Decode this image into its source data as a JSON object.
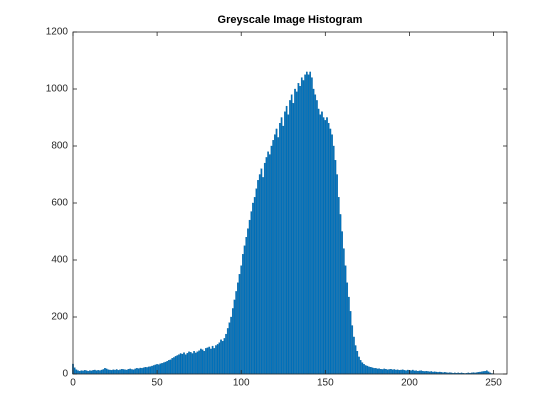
{
  "chart_data": {
    "type": "bar",
    "title": "Greyscale Image Histogram",
    "color": "#0072bd",
    "x": [
      0,
      1,
      2,
      3,
      4,
      5,
      6,
      7,
      8,
      9,
      10,
      11,
      12,
      13,
      14,
      15,
      16,
      17,
      18,
      19,
      20,
      21,
      22,
      23,
      24,
      25,
      26,
      27,
      28,
      29,
      30,
      31,
      32,
      33,
      34,
      35,
      36,
      37,
      38,
      39,
      40,
      41,
      42,
      43,
      44,
      45,
      46,
      47,
      48,
      49,
      50,
      51,
      52,
      53,
      54,
      55,
      56,
      57,
      58,
      59,
      60,
      61,
      62,
      63,
      64,
      65,
      66,
      67,
      68,
      69,
      70,
      71,
      72,
      73,
      74,
      75,
      76,
      77,
      78,
      79,
      80,
      81,
      82,
      83,
      84,
      85,
      86,
      87,
      88,
      89,
      90,
      91,
      92,
      93,
      94,
      95,
      96,
      97,
      98,
      99,
      100,
      101,
      102,
      103,
      104,
      105,
      106,
      107,
      108,
      109,
      110,
      111,
      112,
      113,
      114,
      115,
      116,
      117,
      118,
      119,
      120,
      121,
      122,
      123,
      124,
      125,
      126,
      127,
      128,
      129,
      130,
      131,
      132,
      133,
      134,
      135,
      136,
      137,
      138,
      139,
      140,
      141,
      142,
      143,
      144,
      145,
      146,
      147,
      148,
      149,
      150,
      151,
      152,
      153,
      154,
      155,
      156,
      157,
      158,
      159,
      160,
      161,
      162,
      163,
      164,
      165,
      166,
      167,
      168,
      169,
      170,
      171,
      172,
      173,
      174,
      175,
      176,
      177,
      178,
      179,
      180,
      181,
      182,
      183,
      184,
      185,
      186,
      187,
      188,
      189,
      190,
      191,
      192,
      193,
      194,
      195,
      196,
      197,
      198,
      199,
      200,
      201,
      202,
      203,
      204,
      205,
      206,
      207,
      208,
      209,
      210,
      211,
      212,
      213,
      214,
      215,
      216,
      217,
      218,
      219,
      220,
      221,
      222,
      223,
      224,
      225,
      226,
      227,
      228,
      229,
      230,
      231,
      232,
      233,
      234,
      235,
      236,
      237,
      238,
      239,
      240,
      241,
      242,
      243,
      244,
      245,
      246,
      247,
      248,
      249,
      250,
      251,
      252,
      253,
      254,
      255
    ],
    "values": [
      35,
      22,
      15,
      12,
      10,
      12,
      11,
      13,
      12,
      10,
      12,
      11,
      13,
      14,
      12,
      13,
      12,
      14,
      16,
      20,
      18,
      15,
      14,
      13,
      15,
      14,
      16,
      13,
      15,
      17,
      16,
      15,
      14,
      17,
      18,
      16,
      15,
      18,
      20,
      19,
      21,
      20,
      22,
      24,
      23,
      25,
      26,
      28,
      30,
      32,
      34,
      33,
      36,
      38,
      40,
      42,
      45,
      48,
      50,
      55,
      58,
      62,
      65,
      68,
      72,
      70,
      75,
      68,
      73,
      78,
      76,
      72,
      80,
      74,
      78,
      82,
      88,
      85,
      80,
      90,
      92,
      95,
      88,
      98,
      90,
      100,
      104,
      110,
      120,
      115,
      125,
      140,
      160,
      180,
      200,
      230,
      260,
      290,
      320,
      350,
      380,
      420,
      450,
      480,
      510,
      540,
      570,
      600,
      620,
      650,
      680,
      700,
      720,
      690,
      740,
      760,
      780,
      770,
      800,
      820,
      840,
      860,
      830,
      880,
      900,
      870,
      920,
      940,
      910,
      960,
      980,
      950,
      1000,
      990,
      1020,
      1010,
      1040,
      1030,
      1050,
      1060,
      1050,
      1060,
      1040,
      1000,
      980,
      960,
      930,
      910,
      920,
      900,
      890,
      900,
      880,
      860,
      840,
      800,
      750,
      700,
      620,
      560,
      500,
      440,
      380,
      320,
      270,
      220,
      170,
      130,
      100,
      80,
      60,
      48,
      40,
      34,
      30,
      28,
      25,
      24,
      22,
      20,
      20,
      18,
      19,
      17,
      16,
      18,
      17,
      15,
      16,
      17,
      15,
      16,
      14,
      15,
      13,
      14,
      15,
      13,
      12,
      14,
      13,
      12,
      14,
      11,
      12,
      10,
      11,
      12,
      10,
      9,
      10,
      9,
      8,
      9,
      7,
      8,
      7,
      6,
      7,
      6,
      5,
      6,
      5,
      4,
      5,
      4,
      3,
      4,
      3,
      4,
      3,
      4,
      3,
      2,
      3,
      4,
      3,
      4,
      5,
      4,
      5,
      6,
      7,
      8,
      9,
      10,
      12,
      8,
      4,
      2,
      1,
      0,
      0,
      0,
      0,
      0
    ],
    "xlim": [
      0,
      258
    ],
    "xticks": [
      0,
      50,
      100,
      150,
      200,
      250
    ],
    "ylim": [
      0,
      1200
    ],
    "yticks": [
      0,
      200,
      400,
      600,
      800,
      1000,
      1200
    ]
  }
}
